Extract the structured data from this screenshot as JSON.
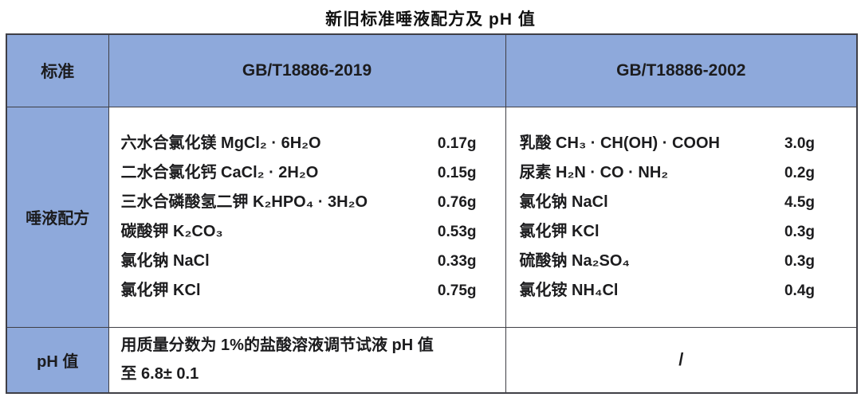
{
  "title": "新旧标准唾液配方及 pH 值",
  "colors": {
    "header_bg": "#8EA9DB",
    "border": "#3F3F46",
    "text": "#1C1C1E",
    "page_bg": "#FFFFFF"
  },
  "table": {
    "header": {
      "standard_label": "标准",
      "col_2019": "GB/T18886-2019",
      "col_2002": "GB/T18886-2002"
    },
    "formula_row": {
      "label": "唾液配方",
      "gb2019": [
        {
          "name": "六水合氯化镁 MgCl₂ · 6H₂O",
          "amount": "0.17g"
        },
        {
          "name": "二水合氯化钙 CaCl₂ · 2H₂O",
          "amount": "0.15g"
        },
        {
          "name": "三水合磷酸氢二钾 K₂HPO₄ · 3H₂O",
          "amount": "0.76g"
        },
        {
          "name": "碳酸钾 K₂CO₃",
          "amount": "0.53g"
        },
        {
          "name": "氯化钠 NaCl",
          "amount": "0.33g"
        },
        {
          "name": "氯化钾 KCl",
          "amount": "0.75g"
        }
      ],
      "gb2002": [
        {
          "name": "乳酸 CH₃ · CH(OH) · COOH",
          "amount": "3.0g"
        },
        {
          "name": "尿素 H₂N · CO · NH₂",
          "amount": "0.2g"
        },
        {
          "name": "氯化钠 NaCl",
          "amount": "4.5g"
        },
        {
          "name": "氯化钾 KCl",
          "amount": "0.3g"
        },
        {
          "name": "硫酸钠 Na₂SO₄",
          "amount": "0.3g"
        },
        {
          "name": "氯化铵 NH₄Cl",
          "amount": "0.4g"
        }
      ]
    },
    "ph_row": {
      "label": "pH 值",
      "gb2019_line1": "用质量分数为 1%的盐酸溶液调节试液 pH 值",
      "gb2019_line2": "至 6.8± 0.1",
      "gb2002": "/"
    }
  }
}
